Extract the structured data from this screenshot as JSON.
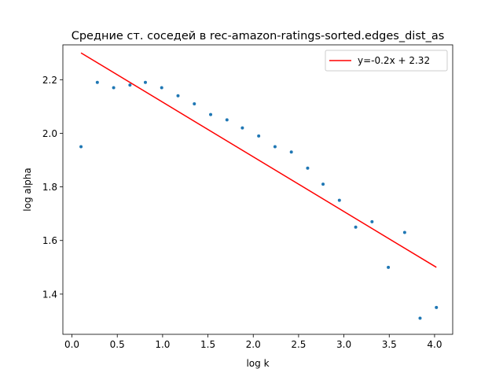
{
  "chart_data": {
    "type": "scatter",
    "title": "Средние ст. соседей в rec-amazon-ratings-sorted.edges_dist_as",
    "xlabel": "log k",
    "ylabel": "log alpha",
    "xlim": [
      -0.1,
      4.2
    ],
    "ylim": [
      1.25,
      2.33
    ],
    "xticks": [
      0.0,
      0.5,
      1.0,
      1.5,
      2.0,
      2.5,
      3.0,
      3.5,
      4.0
    ],
    "xtick_labels": [
      "0.0",
      "0.5",
      "1.0",
      "1.5",
      "2.0",
      "2.5",
      "3.0",
      "3.5",
      "4.0"
    ],
    "yticks": [
      1.4,
      1.6,
      1.8,
      2.0,
      2.2
    ],
    "ytick_labels": [
      "1.4",
      "1.6",
      "1.8",
      "2.0",
      "2.2"
    ],
    "grid": false,
    "legend_position": "top-right",
    "series": [
      {
        "kind": "scatter",
        "color": "#1f77b4",
        "x": [
          0.1,
          0.28,
          0.46,
          0.64,
          0.81,
          0.99,
          1.17,
          1.35,
          1.53,
          1.71,
          1.88,
          2.06,
          2.24,
          2.42,
          2.6,
          2.77,
          2.95,
          3.13,
          3.31,
          3.49,
          3.67,
          3.84,
          4.02
        ],
        "y": [
          1.95,
          2.19,
          2.17,
          2.18,
          2.19,
          2.17,
          2.14,
          2.11,
          2.07,
          2.05,
          2.02,
          1.99,
          1.95,
          1.93,
          1.87,
          1.81,
          1.75,
          1.65,
          1.67,
          1.5,
          1.63,
          1.31,
          1.35
        ]
      },
      {
        "kind": "line",
        "name": "y=-0.2x + 2.32",
        "color": "#ff0000",
        "x": [
          0.1,
          4.02
        ],
        "y": [
          2.3,
          1.5
        ]
      }
    ]
  }
}
